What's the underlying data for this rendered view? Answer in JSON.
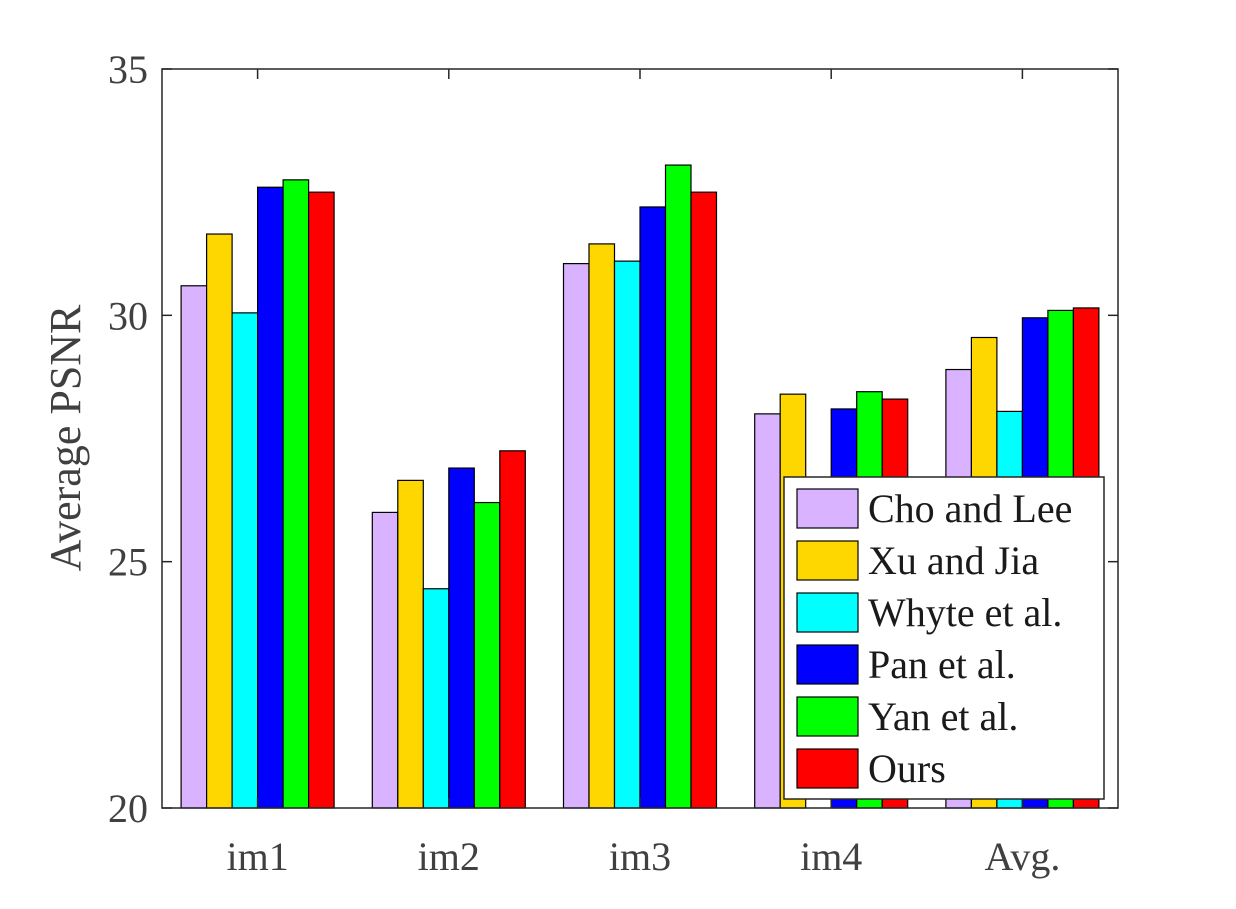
{
  "chart_data": {
    "type": "bar",
    "title": "",
    "xlabel": "",
    "ylabel": "Average PSNR",
    "ylim": [
      20,
      35
    ],
    "yticks": [
      20,
      25,
      30,
      35
    ],
    "grid": false,
    "legend_position": "bottom-right",
    "categories": [
      "im1",
      "im2",
      "im3",
      "im4",
      "Avg."
    ],
    "series": [
      {
        "name": "Cho and Lee",
        "color": "#d9b3ff",
        "values": [
          30.6,
          26.0,
          31.05,
          28.0,
          28.9
        ]
      },
      {
        "name": "Xu and Jia",
        "color": "#ffd700",
        "values": [
          31.65,
          26.65,
          31.45,
          28.4,
          29.55
        ]
      },
      {
        "name": "Whyte et al.",
        "color": "#00ffff",
        "values": [
          30.05,
          24.45,
          31.1,
          20.0,
          28.05
        ]
      },
      {
        "name": "Pan et al.",
        "color": "#0000ff",
        "values": [
          32.6,
          26.9,
          32.2,
          28.1,
          29.95
        ]
      },
      {
        "name": "Yan et al.",
        "color": "#00ff00",
        "values": [
          32.75,
          26.2,
          33.05,
          28.45,
          30.1
        ]
      },
      {
        "name": "Ours",
        "color": "#ff0000",
        "values": [
          32.5,
          27.25,
          32.5,
          28.3,
          30.15
        ]
      }
    ]
  }
}
